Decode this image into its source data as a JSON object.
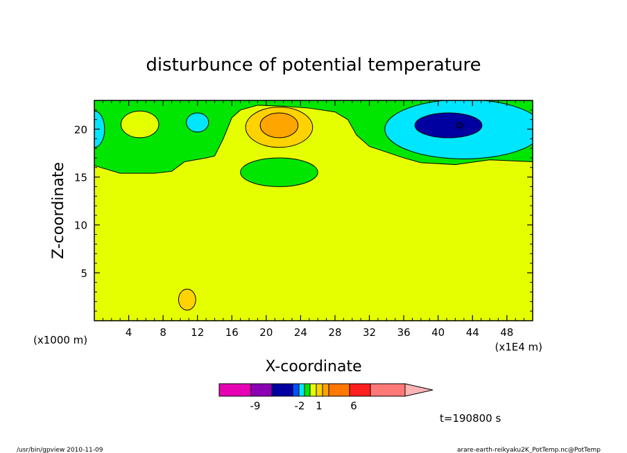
{
  "chart_data": {
    "type": "heatmap",
    "title": "disturbunce of potential temperature",
    "xlabel": "X-coordinate",
    "ylabel": "Z-coordinate",
    "x_unit_left": "(x1000 m)",
    "x_unit_right": "(x1E4 m)",
    "xlim": [
      0,
      51
    ],
    "ylim": [
      0,
      23
    ],
    "x_ticks": [
      "4",
      "8",
      "12",
      "16",
      "20",
      "24",
      "28",
      "32",
      "36",
      "40",
      "44",
      "48"
    ],
    "x_tick_values": [
      4,
      8,
      12,
      16,
      20,
      24,
      28,
      32,
      36,
      40,
      44,
      48
    ],
    "y_ticks": [
      "5",
      "10",
      "15",
      "20"
    ],
    "y_tick_values": [
      5,
      10,
      15,
      20
    ],
    "colorbar": {
      "colors": [
        "#e600b4",
        "#8c00b4",
        "#0000a0",
        "#0050ff",
        "#00e6ff",
        "#00e600",
        "#e6ff00",
        "#ffd200",
        "#ffa500",
        "#ff7800",
        "#ff1e1e",
        "#ff7878",
        "#ffb4b4"
      ],
      "tick_labels": [
        "-9",
        "-2",
        "1",
        "6"
      ]
    },
    "regions": [
      {
        "name": "orange-low",
        "color": "#ffa500",
        "y_top": [
          [
            0,
            8.8
          ],
          [
            5,
            7.8
          ],
          [
            10,
            7.6
          ],
          [
            14,
            7.2
          ],
          [
            16,
            6.8
          ],
          [
            16.8,
            5
          ],
          [
            17,
            3
          ],
          [
            17.4,
            1.5
          ],
          [
            18,
            1.2
          ],
          [
            20,
            1.2
          ],
          [
            20.6,
            2
          ],
          [
            21,
            4
          ],
          [
            21.6,
            6.8
          ],
          [
            23,
            7.6
          ],
          [
            27,
            8.2
          ],
          [
            33,
            8.8
          ],
          [
            38,
            9
          ],
          [
            42,
            9.4
          ],
          [
            46,
            9.3
          ],
          [
            51,
            8.8
          ]
        ]
      },
      {
        "name": "gold-band",
        "color": "#ffd200",
        "y_top": [
          [
            0,
            12.6
          ],
          [
            4,
            12.2
          ],
          [
            9,
            12.2
          ],
          [
            10,
            12.4
          ],
          [
            11,
            12.1
          ],
          [
            16,
            11.7
          ],
          [
            20,
            11.6
          ],
          [
            26,
            11.8
          ],
          [
            32,
            12.3
          ],
          [
            38,
            12.8
          ],
          [
            42,
            13.2
          ],
          [
            46,
            13
          ],
          [
            51,
            12.6
          ]
        ]
      },
      {
        "name": "yellow-band",
        "color": "#e6ff00",
        "y_top": [
          [
            0,
            16.2
          ],
          [
            3,
            15.4
          ],
          [
            7,
            15.4
          ],
          [
            9,
            15.6
          ],
          [
            10.5,
            16.6
          ],
          [
            13,
            17
          ],
          [
            14,
            17.2
          ],
          [
            15,
            19
          ],
          [
            16,
            21.2
          ],
          [
            17,
            22
          ],
          [
            19,
            22.5
          ],
          [
            22,
            22.4
          ],
          [
            25,
            22.2
          ],
          [
            28,
            21.8
          ],
          [
            29.5,
            21
          ],
          [
            30.5,
            19.4
          ],
          [
            32,
            18.2
          ],
          [
            36,
            17
          ],
          [
            38,
            16.5
          ],
          [
            42,
            16.3
          ],
          [
            46,
            16.8
          ],
          [
            51,
            16.6
          ]
        ]
      }
    ],
    "blobs": [
      {
        "name": "green-mid",
        "color": "#00e600",
        "stroke": true,
        "cx": 21.5,
        "cy": 15.5,
        "rx": 4.5,
        "ry": 1.5
      },
      {
        "name": "yellow-left",
        "color": "#e6ff00",
        "stroke": true,
        "cx": 5.3,
        "cy": 20.5,
        "rx": 2.2,
        "ry": 1.4
      },
      {
        "name": "cyan-small",
        "color": "#00e6ff",
        "stroke": true,
        "cx": 12,
        "cy": 20.7,
        "rx": 1.3,
        "ry": 1
      },
      {
        "name": "gold-top",
        "color": "#ffd200",
        "stroke": true,
        "cx": 21.5,
        "cy": 20.2,
        "rx": 3.9,
        "ry": 2.1
      },
      {
        "name": "orange-top",
        "color": "#ffa500",
        "stroke": true,
        "cx": 21.5,
        "cy": 20.4,
        "rx": 2.2,
        "ry": 1.3
      },
      {
        "name": "cyan-left-edge",
        "color": "#00e6ff",
        "stroke": true,
        "cx": 0,
        "cy": 20,
        "rx": 1.2,
        "ry": 1.9
      },
      {
        "name": "cyan-right",
        "color": "#00e6ff",
        "stroke": true,
        "cx": 43,
        "cy": 20,
        "rx": 9.2,
        "ry": 3.1
      },
      {
        "name": "blue-right",
        "color": "#0000a0",
        "stroke": true,
        "cx": 41.2,
        "cy": 20.4,
        "rx": 3.9,
        "ry": 1.3
      },
      {
        "name": "orange-bottom-small",
        "color": "#ffd200",
        "stroke": true,
        "cx": 10.8,
        "cy": 2.2,
        "rx": 1,
        "ry": 1.1
      }
    ]
  },
  "footer": {
    "left": "/usr/bin/gpview  2010-11-09",
    "right": "arare-earth-reikyaku2K_PotTemp.nc@PotTemp",
    "time": "t=190800 s"
  }
}
